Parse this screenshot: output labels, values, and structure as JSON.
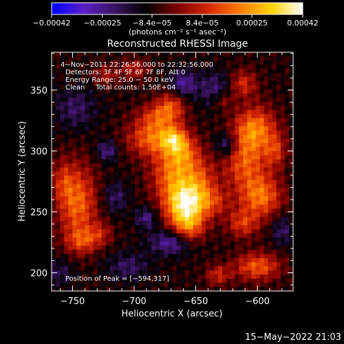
{
  "chart_data": {
    "type": "heatmap",
    "title": "Reconstructed RHESSI Image",
    "colorbar": {
      "tick_labels": [
        "−0.00042",
        "−0.00025",
        "−8.4e−05",
        "8.4e−05",
        "0.00025",
        "0.00042"
      ],
      "tick_values": [
        -0.00042,
        -0.00025,
        -8.4e-05,
        8.4e-05,
        0.00025,
        0.00042
      ],
      "range": [
        -0.00042,
        0.00042
      ],
      "unit_label": "(photons cm⁻² s⁻¹ asec⁻²)",
      "colormap": [
        "#0000ff",
        "#5a1ec8",
        "#3c1464",
        "#000000",
        "#7a0000",
        "#d62800",
        "#ff7a00",
        "#ffd200",
        "#ffffff"
      ]
    },
    "xlabel": "Heliocentric X (arcsec)",
    "ylabel": "Heliocentric Y (arcsec)",
    "xlim": [
      -767,
      -571
    ],
    "ylim": [
      185,
      381
    ],
    "x_ticks": [
      -750,
      -700,
      -650,
      -600
    ],
    "x_tick_labels": [
      "−750",
      "−700",
      "−650",
      "−600"
    ],
    "y_ticks": [
      200,
      250,
      300,
      350
    ],
    "y_tick_labels": [
      "200",
      "250",
      "300",
      "350"
    ],
    "annotations": [
      "4−Nov−2011 22:26:56.000 to 22:32:56.000",
      "Detectors: 3F 4F 5F 6F 7F 8F, Att 0",
      "Energy Range: 25.0 − 50.0 keV",
      "Clean     Total counts: 1.50E+04",
      "Position of Peak = [−594,317]"
    ],
    "peak": {
      "x": -594,
      "y": 317
    },
    "sources": [
      {
        "x": -659,
        "y": 255,
        "sx": 11,
        "sy": 13,
        "amp": 0.00042
      },
      {
        "x": -668,
        "y": 282,
        "sx": 13,
        "sy": 16,
        "amp": 0.00026
      },
      {
        "x": -655,
        "y": 236,
        "sx": 9,
        "sy": 9,
        "amp": 0.00018
      },
      {
        "x": -646,
        "y": 275,
        "sx": 9,
        "sy": 14,
        "amp": 0.00016
      },
      {
        "x": -686,
        "y": 310,
        "sx": 14,
        "sy": 10,
        "amp": 0.00024
      },
      {
        "x": -668,
        "y": 310,
        "sx": 7,
        "sy": 7,
        "amp": 0.00022
      },
      {
        "x": -680,
        "y": 328,
        "sx": 12,
        "sy": 8,
        "amp": 0.00019
      },
      {
        "x": -670,
        "y": 338,
        "sx": 8,
        "sy": 8,
        "amp": 0.00018
      },
      {
        "x": -660,
        "y": 300,
        "sx": 9,
        "sy": 10,
        "amp": 0.00017
      },
      {
        "x": -636,
        "y": 258,
        "sx": 10,
        "sy": 9,
        "amp": 0.00015
      },
      {
        "x": -746,
        "y": 257,
        "sx": 11,
        "sy": 22,
        "amp": 0.00026
      },
      {
        "x": -742,
        "y": 226,
        "sx": 9,
        "sy": 7,
        "amp": 0.00016
      },
      {
        "x": -758,
        "y": 275,
        "sx": 6,
        "sy": 12,
        "amp": 0.00012
      },
      {
        "x": -727,
        "y": 232,
        "sx": 7,
        "sy": 7,
        "amp": 0.00012
      },
      {
        "x": -602,
        "y": 318,
        "sx": 12,
        "sy": 13,
        "amp": 0.00028
      },
      {
        "x": -610,
        "y": 290,
        "sx": 13,
        "sy": 16,
        "amp": 0.00022
      },
      {
        "x": -597,
        "y": 262,
        "sx": 12,
        "sy": 12,
        "amp": 0.00026
      },
      {
        "x": -612,
        "y": 240,
        "sx": 9,
        "sy": 8,
        "amp": 0.00018
      },
      {
        "x": -600,
        "y": 205,
        "sx": 13,
        "sy": 8,
        "amp": 0.00024
      },
      {
        "x": -632,
        "y": 198,
        "sx": 7,
        "sy": 6,
        "amp": 0.00016
      },
      {
        "x": -612,
        "y": 355,
        "sx": 8,
        "sy": 8,
        "amp": 0.00018
      },
      {
        "x": -585,
        "y": 300,
        "sx": 6,
        "sy": 10,
        "amp": 0.00015
      },
      {
        "x": -628,
        "y": 342,
        "sx": 6,
        "sy": 6,
        "amp": 0.00014
      },
      {
        "x": -700,
        "y": 367,
        "sx": 8,
        "sy": 6,
        "amp": 0.00014
      },
      {
        "x": -723,
        "y": 362,
        "sx": 7,
        "sy": 6,
        "amp": 0.00012
      },
      {
        "x": -722,
        "y": 300,
        "sx": 6,
        "sy": 6,
        "amp": -0.00016
      },
      {
        "x": -715,
        "y": 262,
        "sx": 7,
        "sy": 9,
        "amp": -0.00012
      },
      {
        "x": -670,
        "y": 225,
        "sx": 12,
        "sy": 7,
        "amp": -0.0002
      },
      {
        "x": -690,
        "y": 245,
        "sx": 6,
        "sy": 6,
        "amp": -0.00016
      },
      {
        "x": -625,
        "y": 305,
        "sx": 6,
        "sy": 7,
        "amp": -0.00018
      },
      {
        "x": -633,
        "y": 350,
        "sx": 10,
        "sy": 10,
        "amp": -0.00015
      },
      {
        "x": -660,
        "y": 355,
        "sx": 8,
        "sy": 8,
        "amp": -0.00018
      },
      {
        "x": -748,
        "y": 335,
        "sx": 12,
        "sy": 12,
        "amp": -0.00012
      },
      {
        "x": -705,
        "y": 205,
        "sx": 12,
        "sy": 8,
        "amp": -0.00012
      },
      {
        "x": -580,
        "y": 235,
        "sx": 6,
        "sy": 9,
        "amp": -0.00012
      },
      {
        "x": -760,
        "y": 200,
        "sx": 8,
        "sy": 8,
        "amp": -0.0001
      }
    ]
  },
  "footer": {
    "timestamp": "15−May−2022 21:03"
  }
}
